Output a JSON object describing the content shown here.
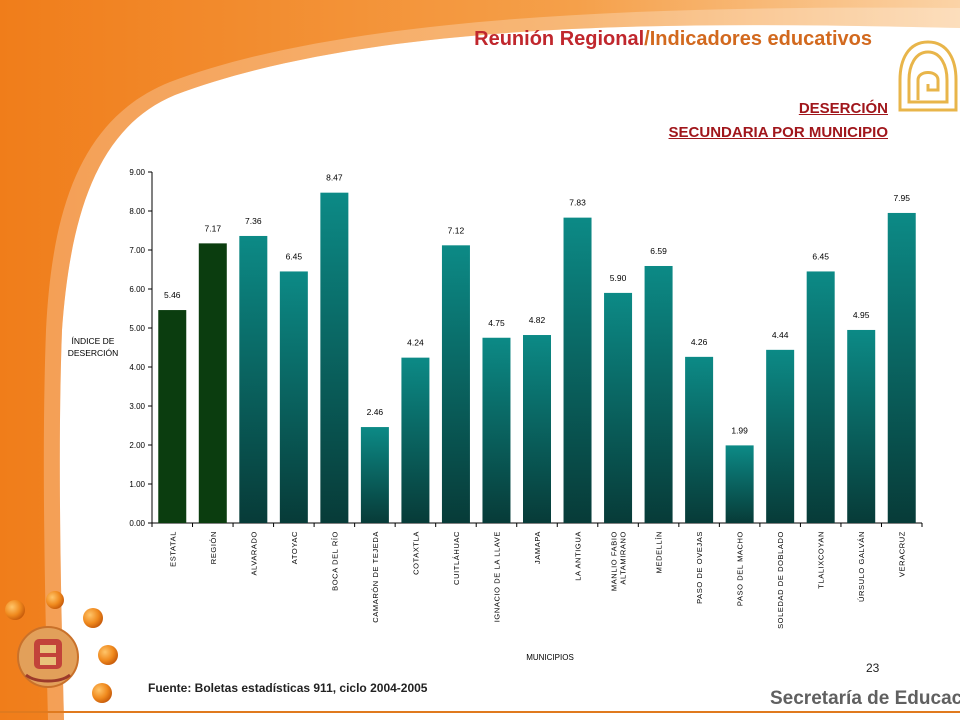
{
  "header": {
    "title_part1": "Reunión Regional",
    "title_part2": "/Indicadores educativos",
    "title_color1": "#C0272D",
    "title_color2": "#D2691E"
  },
  "slide": {
    "subtitle_line1": "DESERCIÓN",
    "subtitle_line2": "SECUNDARIA POR MUNICIPIO",
    "subtitle_color": "#A0161B",
    "page_number": "23",
    "source": "Fuente: Boletas estadísticas 911, ciclo 2004-2005",
    "footer_brand": "Secretaría de Educación",
    "accent_orange": "#F07D1A",
    "logo_icon": "ornamental-seal-icon",
    "emblem_icon": "veracruz-coat-of-arms-icon"
  },
  "chart_data": {
    "type": "bar",
    "ylabel": "ÍNDICE DE DESERCIÓN",
    "xlabel": "MUNICIPIOS",
    "ylim": [
      0,
      9
    ],
    "yticks": [
      "0.00",
      "1.00",
      "2.00",
      "3.00",
      "4.00",
      "5.00",
      "6.00",
      "7.00",
      "8.00",
      "9.00"
    ],
    "categories": [
      "ESTATAL",
      "REGIÓN",
      "ALVARADO",
      "ATOYAC",
      "BOCA DEL RÍO",
      "CAMARÓN DE TEJEDA",
      "COTAXTLA",
      "CUITLÁHUAC",
      "IGNACIO DE LA LLAVE",
      "JAMAPA",
      "LA ANTIGUA",
      "MANLIO FABIO ALTAMIRANO",
      "MEDELLÍN",
      "PASO DE OVEJAS",
      "PASO DEL MACHO",
      "SOLEDAD DE DOBLADO",
      "TLALIXCOYAN",
      "ÚRSULO GALVÁN",
      "VERACRUZ"
    ],
    "values": [
      5.46,
      7.17,
      7.36,
      6.45,
      8.47,
      2.46,
      4.24,
      7.12,
      4.75,
      4.82,
      7.83,
      5.9,
      6.59,
      4.26,
      1.99,
      4.44,
      6.45,
      4.95,
      7.95
    ],
    "value_labels": [
      "5.46",
      "7.17",
      "7.36",
      "6.45",
      "8.47",
      "2.46",
      "4.24",
      "7.12",
      "4.75",
      "4.82",
      "7.83",
      "5.90",
      "6.59",
      "4.26",
      "1.99",
      "4.44",
      "6.45",
      "4.95",
      "7.95"
    ],
    "colors": {
      "estatal_region": "#0B3D0F",
      "municipio_top": "#0C8A86",
      "municipio_bottom": "#073B38"
    },
    "grid": false,
    "legend": "none"
  }
}
